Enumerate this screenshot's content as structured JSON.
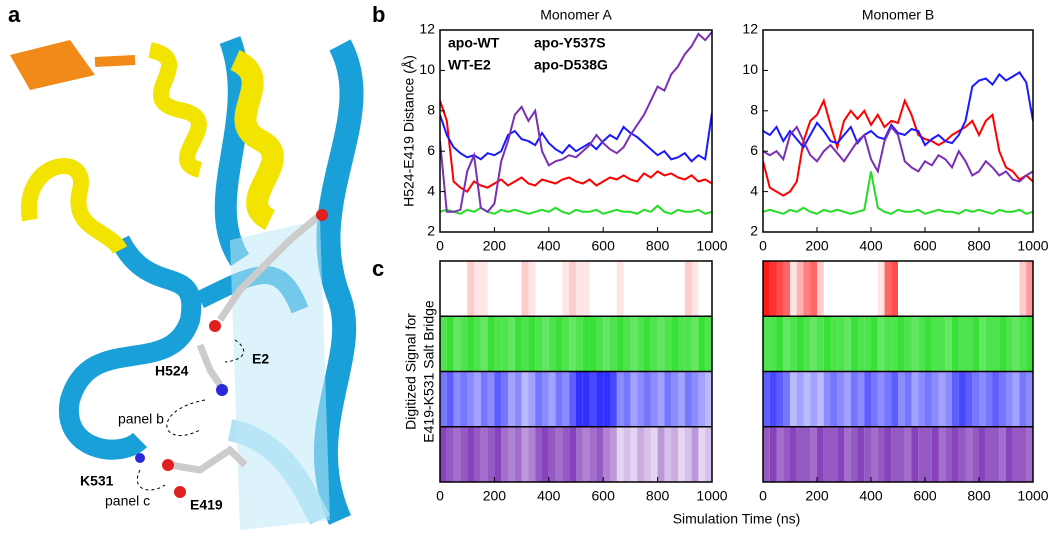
{
  "panel_labels": [
    "a",
    "b",
    "c"
  ],
  "panel_a": {
    "residues": [
      "E2",
      "H524",
      "K531",
      "E419"
    ],
    "annotations": [
      "panel b",
      "panel c"
    ]
  },
  "chart_data": [
    {
      "type": "line",
      "title": "Monomer A",
      "ylabel": "H524-E419 Distance (Å)",
      "legend": "upper left",
      "x": [
        0,
        25,
        50,
        75,
        100,
        125,
        150,
        175,
        200,
        225,
        250,
        275,
        300,
        325,
        350,
        375,
        400,
        425,
        450,
        475,
        500,
        525,
        550,
        575,
        600,
        625,
        650,
        675,
        700,
        725,
        750,
        775,
        800,
        825,
        850,
        875,
        900,
        925,
        950,
        975,
        1000
      ],
      "xlim": [
        0,
        1000
      ],
      "xticks": [
        0,
        200,
        400,
        600,
        800,
        1000
      ],
      "ylim": [
        2,
        12
      ],
      "yticks": [
        2,
        4,
        6,
        8,
        10,
        12
      ],
      "series": [
        {
          "name": "apo-WT",
          "color": "#ff0000",
          "values": [
            8.5,
            7.5,
            4.5,
            4.2,
            4.0,
            4.5,
            4.3,
            4.2,
            4.4,
            4.6,
            4.3,
            4.5,
            4.7,
            4.4,
            4.3,
            4.6,
            4.5,
            4.4,
            4.6,
            4.7,
            4.5,
            4.4,
            4.6,
            4.3,
            4.5,
            4.7,
            4.6,
            4.8,
            4.6,
            4.5,
            4.9,
            4.7,
            5.0,
            4.8,
            4.9,
            4.7,
            4.6,
            4.8,
            4.5,
            4.6,
            4.4
          ]
        },
        {
          "name": "WT-E2",
          "color": "#22dd22",
          "values": [
            3.0,
            3.1,
            3.0,
            2.9,
            3.1,
            3.0,
            3.2,
            3.0,
            2.9,
            3.1,
            3.0,
            3.1,
            3.0,
            2.9,
            3.0,
            3.1,
            3.0,
            3.2,
            3.0,
            2.9,
            3.1,
            3.0,
            3.0,
            3.1,
            2.9,
            3.0,
            3.1,
            3.0,
            3.0,
            2.9,
            3.1,
            3.0,
            3.3,
            3.0,
            2.9,
            3.1,
            3.0,
            3.0,
            3.1,
            2.9,
            3.0
          ]
        },
        {
          "name": "apo-Y537S",
          "color": "#1a1aff",
          "values": [
            7.8,
            6.8,
            6.2,
            5.9,
            5.7,
            5.8,
            5.6,
            5.9,
            5.8,
            6.0,
            6.8,
            7.0,
            6.6,
            6.5,
            6.3,
            6.9,
            6.4,
            6.1,
            5.9,
            6.3,
            6.0,
            6.2,
            6.4,
            6.1,
            6.5,
            6.8,
            6.6,
            7.2,
            6.9,
            6.7,
            6.4,
            6.1,
            5.8,
            6.0,
            5.6,
            5.7,
            5.9,
            5.5,
            5.8,
            5.6,
            7.9
          ]
        },
        {
          "name": "apo-D538G",
          "color": "#7a2fb5",
          "values": [
            6.5,
            3.0,
            3.0,
            3.1,
            5.0,
            5.8,
            3.2,
            3.0,
            3.4,
            5.5,
            6.5,
            7.8,
            8.2,
            7.5,
            8.0,
            6.0,
            5.3,
            5.5,
            5.6,
            5.8,
            5.7,
            6.0,
            6.3,
            6.8,
            6.4,
            6.1,
            5.9,
            6.2,
            6.8,
            7.3,
            7.8,
            8.5,
            9.2,
            9.0,
            9.8,
            10.2,
            10.8,
            11.2,
            11.8,
            11.5,
            11.9
          ]
        }
      ]
    },
    {
      "type": "line",
      "title": "Monomer B",
      "x": [
        0,
        25,
        50,
        75,
        100,
        125,
        150,
        175,
        200,
        225,
        250,
        275,
        300,
        325,
        350,
        375,
        400,
        425,
        450,
        475,
        500,
        525,
        550,
        575,
        600,
        625,
        650,
        675,
        700,
        725,
        750,
        775,
        800,
        825,
        850,
        875,
        900,
        925,
        950,
        975,
        1000
      ],
      "xlim": [
        0,
        1000
      ],
      "xticks": [
        0,
        200,
        400,
        600,
        800,
        1000
      ],
      "ylim": [
        2,
        12
      ],
      "yticks": [
        2,
        4,
        6,
        8,
        10,
        12
      ],
      "series": [
        {
          "color": "#ff0000",
          "values": [
            5.5,
            4.2,
            4.0,
            3.8,
            4.0,
            4.5,
            6.5,
            7.5,
            7.8,
            8.5,
            7.3,
            6.2,
            7.5,
            8.0,
            7.6,
            8.0,
            7.3,
            7.8,
            7.2,
            7.5,
            7.4,
            8.5,
            7.8,
            6.8,
            6.6,
            6.5,
            6.3,
            6.5,
            6.8,
            7.0,
            7.2,
            7.5,
            6.8,
            7.5,
            7.8,
            6.0,
            5.2,
            5.0,
            4.6,
            4.8,
            4.5
          ]
        },
        {
          "color": "#22dd22",
          "values": [
            3.0,
            3.1,
            3.0,
            2.9,
            3.1,
            3.0,
            3.2,
            3.0,
            2.9,
            3.1,
            3.0,
            3.1,
            3.0,
            2.9,
            3.0,
            3.1,
            5.0,
            3.2,
            3.0,
            2.9,
            3.1,
            3.0,
            3.0,
            3.1,
            2.9,
            3.0,
            3.1,
            3.0,
            3.0,
            2.9,
            3.1,
            3.0,
            3.1,
            3.0,
            2.9,
            3.1,
            3.0,
            3.0,
            3.1,
            2.9,
            3.0
          ]
        },
        {
          "color": "#1a1aff",
          "values": [
            7.0,
            6.8,
            7.2,
            6.5,
            7.0,
            6.6,
            6.2,
            6.8,
            7.4,
            7.0,
            6.5,
            6.4,
            6.8,
            7.2,
            6.4,
            6.8,
            7.0,
            6.7,
            6.6,
            7.3,
            6.9,
            6.8,
            7.1,
            7.0,
            6.3,
            6.6,
            6.8,
            6.5,
            6.4,
            6.8,
            7.5,
            9.2,
            9.5,
            9.6,
            9.3,
            9.8,
            9.5,
            9.7,
            9.9,
            9.4,
            7.5
          ]
        },
        {
          "color": "#7a2fb5",
          "values": [
            6.0,
            5.8,
            6.0,
            5.6,
            6.8,
            7.2,
            6.5,
            5.8,
            5.5,
            6.0,
            6.3,
            5.9,
            5.5,
            6.0,
            6.5,
            6.8,
            5.6,
            5.0,
            6.5,
            7.2,
            6.8,
            5.5,
            5.2,
            5.0,
            5.5,
            5.3,
            5.8,
            5.6,
            5.2,
            6.0,
            5.5,
            4.8,
            5.0,
            5.5,
            5.2,
            4.8,
            5.0,
            4.6,
            4.5,
            4.8,
            5.0
          ]
        }
      ]
    },
    {
      "type": "raster",
      "ylabel": [
        "Digitized Signal for",
        "E419-K531 Salt Bridge"
      ],
      "xlabel": "Simulation Time (ns)",
      "x": [
        0,
        25,
        50,
        75,
        100,
        125,
        150,
        175,
        200,
        225,
        250,
        275,
        300,
        325,
        350,
        375,
        400,
        425,
        450,
        475,
        500,
        525,
        550,
        575,
        600,
        625,
        650,
        675,
        700,
        725,
        750,
        775,
        800,
        825,
        850,
        875,
        900,
        925,
        950,
        975
      ],
      "xlim": [
        0,
        1000
      ],
      "xticks": [
        0,
        200,
        400,
        600,
        800,
        1000
      ],
      "series": [
        {
          "color": "#ff0000",
          "values": [
            0,
            0,
            0,
            0,
            0.2,
            0.1,
            0.1,
            0,
            0,
            0,
            0,
            0,
            0.2,
            0.1,
            0,
            0,
            0,
            0,
            0.1,
            0.2,
            0.1,
            0.1,
            0,
            0,
            0,
            0,
            0.1,
            0,
            0,
            0,
            0,
            0,
            0,
            0,
            0,
            0,
            0.2,
            0.1,
            0,
            0
          ]
        },
        {
          "color": "#22dd22",
          "values": [
            0.8,
            0.9,
            0.7,
            0.8,
            0.9,
            0.8,
            0.7,
            0.9,
            0.8,
            0.8,
            0.7,
            0.9,
            0.8,
            0.9,
            0.8,
            0.7,
            0.8,
            0.9,
            0.8,
            0.7,
            0.8,
            0.9,
            0.9,
            0.8,
            0.7,
            0.8,
            0.9,
            0.8,
            0.7,
            0.8,
            0.9,
            0.8,
            0.7,
            0.8,
            0.9,
            0.8,
            0.8,
            0.7,
            0.9,
            0.8
          ]
        },
        {
          "color": "#1a1aff",
          "values": [
            0.6,
            0.7,
            0.5,
            0.6,
            0.5,
            0.4,
            0.6,
            0.5,
            0.7,
            0.6,
            0.4,
            0.5,
            0.3,
            0.4,
            0.6,
            0.5,
            0.4,
            0.6,
            0.5,
            0.7,
            0.9,
            0.9,
            0.8,
            0.9,
            0.9,
            0.8,
            0.5,
            0.6,
            0.4,
            0.5,
            0.6,
            0.5,
            0.4,
            0.6,
            0.5,
            0.4,
            0.6,
            0.5,
            0.4,
            0.3
          ]
        },
        {
          "color": "#7a2fb5",
          "values": [
            0.9,
            0.8,
            0.7,
            0.8,
            0.9,
            0.8,
            0.7,
            0.8,
            0.9,
            0.7,
            0.6,
            0.7,
            0.5,
            0.6,
            0.8,
            0.9,
            0.8,
            0.7,
            0.8,
            0.9,
            0.7,
            0.6,
            0.7,
            0.8,
            0.6,
            0.5,
            0.2,
            0.3,
            0.2,
            0.4,
            0.3,
            0.2,
            0.5,
            0.3,
            0.4,
            0.2,
            0.3,
            0.5,
            0.2,
            0.3
          ]
        }
      ]
    },
    {
      "type": "raster",
      "x": [
        0,
        25,
        50,
        75,
        100,
        125,
        150,
        175,
        200,
        225,
        250,
        275,
        300,
        325,
        350,
        375,
        400,
        425,
        450,
        475,
        500,
        525,
        550,
        575,
        600,
        625,
        650,
        675,
        700,
        725,
        750,
        775,
        800,
        825,
        850,
        875,
        900,
        925,
        950,
        975
      ],
      "xlim": [
        0,
        1000
      ],
      "xticks": [
        0,
        200,
        400,
        600,
        800,
        1000
      ],
      "series": [
        {
          "color": "#ff0000",
          "values": [
            0.9,
            0.8,
            0.7,
            0.6,
            0.1,
            0.3,
            0.5,
            0.6,
            0.2,
            0,
            0,
            0,
            0,
            0,
            0,
            0,
            0,
            0.1,
            0.6,
            0.7,
            0,
            0,
            0,
            0,
            0,
            0,
            0,
            0,
            0,
            0,
            0,
            0,
            0,
            0,
            0,
            0,
            0,
            0,
            0.2,
            0.4
          ]
        },
        {
          "color": "#22dd22",
          "values": [
            0.8,
            0.8,
            0.9,
            0.7,
            0.8,
            0.9,
            0.8,
            0.7,
            0.8,
            0.9,
            0.8,
            0.8,
            0.7,
            0.9,
            0.8,
            0.8,
            0.9,
            0.7,
            0.8,
            0.8,
            0.9,
            0.8,
            0.7,
            0.8,
            0.9,
            0.8,
            0.8,
            0.7,
            0.9,
            0.8,
            0.8,
            0.9,
            0.7,
            0.8,
            0.8,
            0.9,
            0.8,
            0.7,
            0.8,
            0.9
          ]
        },
        {
          "color": "#1a1aff",
          "values": [
            0.7,
            0.8,
            0.7,
            0.6,
            0.3,
            0.4,
            0.3,
            0.4,
            0.3,
            0.5,
            0.6,
            0.5,
            0.4,
            0.6,
            0.5,
            0.7,
            0.6,
            0.5,
            0.6,
            0.7,
            0.5,
            0.6,
            0.4,
            0.5,
            0.6,
            0.5,
            0.4,
            0.5,
            0.7,
            0.8,
            0.7,
            0.6,
            0.5,
            0.6,
            0.7,
            0.6,
            0.5,
            0.4,
            0.6,
            0.5
          ]
        },
        {
          "color": "#7a2fb5",
          "values": [
            0.8,
            0.9,
            0.7,
            0.8,
            0.9,
            0.8,
            0.8,
            0.7,
            0.9,
            0.8,
            0.8,
            0.9,
            0.7,
            0.8,
            0.9,
            0.8,
            0.7,
            0.8,
            0.9,
            0.8,
            0.8,
            0.7,
            0.9,
            0.8,
            0.8,
            0.9,
            0.7,
            0.8,
            0.9,
            0.8,
            0.7,
            0.8,
            0.9,
            0.8,
            0.8,
            0.7,
            0.9,
            0.8,
            0.8,
            0.7
          ]
        }
      ]
    }
  ]
}
